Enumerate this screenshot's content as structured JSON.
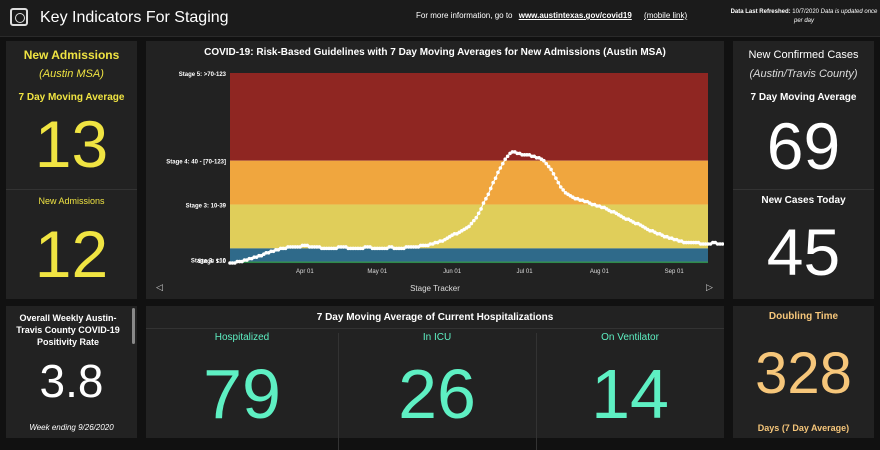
{
  "header": {
    "title": "Key Indicators For Staging",
    "info_text": "For more information, go to",
    "info_link": "www.austintexas.gov/covid19",
    "mobile_link": "(mobile link)",
    "refresh_label": "Data Last Refreshed:",
    "refresh_date": "10/7/2020",
    "refresh_note": "Data is updated once per day"
  },
  "admissions": {
    "title": "New Admissions",
    "subtitle": "(Austin MSA)",
    "avg_label": "7 Day Moving Average",
    "avg_value": "13",
    "new_label": "New Admissions",
    "new_value": "12"
  },
  "cases": {
    "title": "New Confirmed Cases",
    "subtitle": "(Austin/Travis County)",
    "avg_label": "7 Day Moving Average",
    "avg_value": "69",
    "today_label": "New Cases Today",
    "today_value": "45"
  },
  "positivity": {
    "title": "Overall Weekly Austin-Travis County COVID-19 Positivity Rate",
    "value": "3.8",
    "note": "Week ending 9/26/2020"
  },
  "hospitalizations": {
    "title": "7 Day Moving Average of Current Hospitalizations",
    "items": [
      {
        "label": "Hospitalized",
        "value": "79"
      },
      {
        "label": "In ICU",
        "value": "26"
      },
      {
        "label": "On Ventilator",
        "value": "14"
      }
    ]
  },
  "doubling": {
    "title": "Doubling Time",
    "value": "328",
    "unit": "Days (7 Day Average)"
  },
  "colors": {
    "stage5": "#8f2622",
    "stage4": "#f0a63e",
    "stage3": "#e0ce5a",
    "stage2": "#2f6a8a",
    "stage1": "#2f8a4a"
  },
  "chart_data": {
    "type": "scatter",
    "title": "COVID-19: Risk-Based Guidelines with 7 Day Moving Averages for New Admissions (Austin MSA)",
    "footer": "Stage Tracker",
    "ylim": [
      0,
      130
    ],
    "stages": [
      {
        "label": "Stage 5: >70-123",
        "from": 70,
        "to": 130
      },
      {
        "label": "Stage 4: 40 - [70-123]",
        "from": 40,
        "to": 70
      },
      {
        "label": "Stage 3: 10-39",
        "from": 10,
        "to": 40
      },
      {
        "label": "Stage 2: <10",
        "from": 1,
        "to": 10
      },
      {
        "label": "Stage 1: 0",
        "from": 0,
        "to": 1
      }
    ],
    "x_ticks": [
      {
        "label": "Apr 01",
        "day": 31
      },
      {
        "label": "May 01",
        "day": 61
      },
      {
        "label": "Jun 01",
        "day": 92
      },
      {
        "label": "Jul 01",
        "day": 122
      },
      {
        "label": "Aug 01",
        "day": 153
      },
      {
        "label": "Sep 01",
        "day": 184
      }
    ],
    "x_range": [
      0,
      198
    ],
    "values": [
      0,
      0,
      0,
      1,
      1,
      1,
      2,
      2,
      3,
      3,
      4,
      4,
      5,
      5,
      6,
      7,
      7,
      8,
      8,
      9,
      9,
      10,
      10,
      10,
      11,
      11,
      11,
      11,
      11,
      11,
      12,
      12,
      12,
      11,
      11,
      11,
      11,
      11,
      10,
      10,
      10,
      10,
      10,
      10,
      10,
      11,
      11,
      11,
      11,
      10,
      10,
      10,
      10,
      10,
      10,
      10,
      11,
      11,
      11,
      10,
      10,
      10,
      10,
      10,
      10,
      10,
      11,
      11,
      10,
      10,
      10,
      10,
      10,
      11,
      11,
      11,
      11,
      11,
      11,
      12,
      12,
      12,
      12,
      13,
      13,
      14,
      14,
      15,
      15,
      16,
      17,
      18,
      19,
      20,
      20,
      21,
      22,
      23,
      24,
      25,
      27,
      29,
      31,
      34,
      37,
      41,
      44,
      47,
      51,
      55,
      58,
      62,
      65,
      68,
      71,
      73,
      75,
      76,
      76,
      75,
      75,
      74,
      74,
      74,
      74,
      73,
      73,
      72,
      72,
      71,
      70,
      68,
      66,
      64,
      61,
      58,
      55,
      52,
      50,
      48,
      47,
      46,
      45,
      44,
      44,
      43,
      43,
      42,
      42,
      41,
      40,
      40,
      39,
      39,
      38,
      38,
      37,
      36,
      35,
      35,
      34,
      33,
      32,
      31,
      30,
      30,
      29,
      28,
      27,
      27,
      26,
      25,
      24,
      23,
      22,
      22,
      21,
      20,
      20,
      19,
      18,
      18,
      17,
      17,
      16,
      16,
      15,
      15,
      14,
      14,
      14,
      14,
      14,
      14,
      14,
      13,
      13,
      13,
      13,
      13,
      14,
      14,
      13,
      13,
      13
    ]
  }
}
